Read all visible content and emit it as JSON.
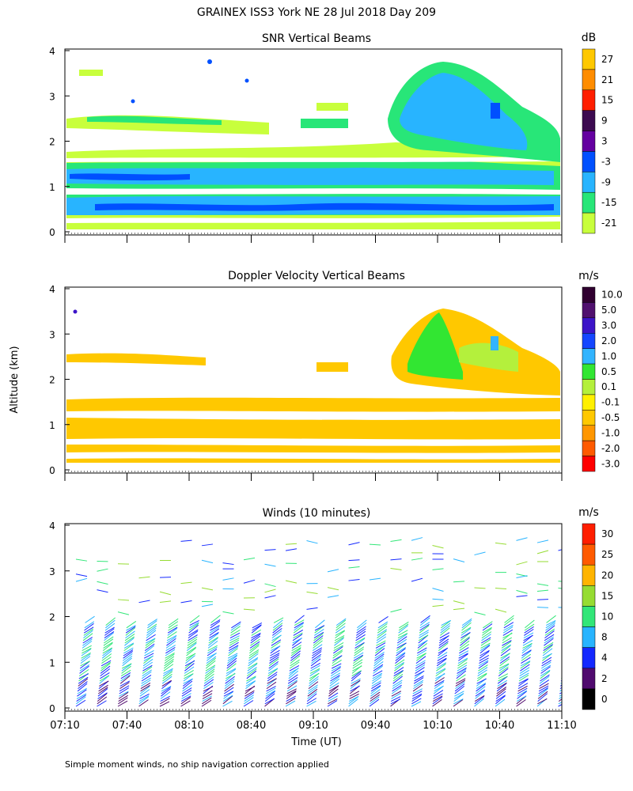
{
  "title": "GRAINEX ISS3 York NE  28 Jul 2018 Day 209",
  "footnote": "Simple moment winds, no ship navigation correction applied",
  "y_axis_label": "Altitude (km)",
  "x_axis_label": "Time (UT)",
  "chart_data": [
    {
      "type": "heatmap",
      "title": "SNR Vertical Beams",
      "ylabel": "Altitude (km)",
      "ylim": [
        0,
        4
      ],
      "y_ticks": [
        "0",
        "1",
        "2",
        "3",
        "4"
      ],
      "xlim": [
        "07:10",
        "11:10"
      ],
      "colorbar": {
        "unit": "dB",
        "labels": [
          "27",
          "21",
          "15",
          "9",
          "3",
          "-3",
          "-9",
          "-15",
          "-21"
        ],
        "colors": [
          "#ffc800",
          "#ff8c00",
          "#ff1e00",
          "#3c0a50",
          "#6400a0",
          "#0050ff",
          "#28b4ff",
          "#28e678",
          "#c8ff3c"
        ]
      }
    },
    {
      "type": "heatmap",
      "title": "Doppler Velocity Vertical Beams",
      "ylabel": "Altitude (km)",
      "ylim": [
        0,
        4
      ],
      "y_ticks": [
        "0",
        "1",
        "2",
        "3",
        "4"
      ],
      "xlim": [
        "07:10",
        "11:10"
      ],
      "colorbar": {
        "unit": "m/s",
        "labels": [
          "10.0",
          "5.0",
          "3.0",
          "2.0",
          "1.0",
          "0.5",
          "0.1",
          "-0.1",
          "-0.5",
          "-1.0",
          "-2.0",
          "-3.0"
        ],
        "colors": [
          "#300030",
          "#50106e",
          "#3c14c8",
          "#1446ff",
          "#32b4ff",
          "#32e632",
          "#b4f03c",
          "#fff000",
          "#ffc800",
          "#ff9600",
          "#ff5a00",
          "#ff0000"
        ]
      }
    },
    {
      "type": "wind_barbs",
      "title": "Winds (10 minutes)",
      "xlabel": "Time (UT)",
      "ylabel": "Altitude (km)",
      "ylim": [
        0,
        4
      ],
      "y_ticks": [
        "0",
        "1",
        "2",
        "3",
        "4"
      ],
      "x_ticks": [
        "07:10",
        "07:40",
        "08:10",
        "08:40",
        "09:10",
        "09:40",
        "10:10",
        "10:40",
        "11:10"
      ],
      "colorbar": {
        "unit": "m/s",
        "labels": [
          "30",
          "25",
          "20",
          "15",
          "10",
          "8",
          "4",
          "2",
          "0"
        ],
        "colors": [
          "#ff1e00",
          "#ff5a00",
          "#ffb400",
          "#96dc32",
          "#32e678",
          "#28b4ff",
          "#1428ff",
          "#500a6e",
          "#000000"
        ]
      }
    }
  ]
}
